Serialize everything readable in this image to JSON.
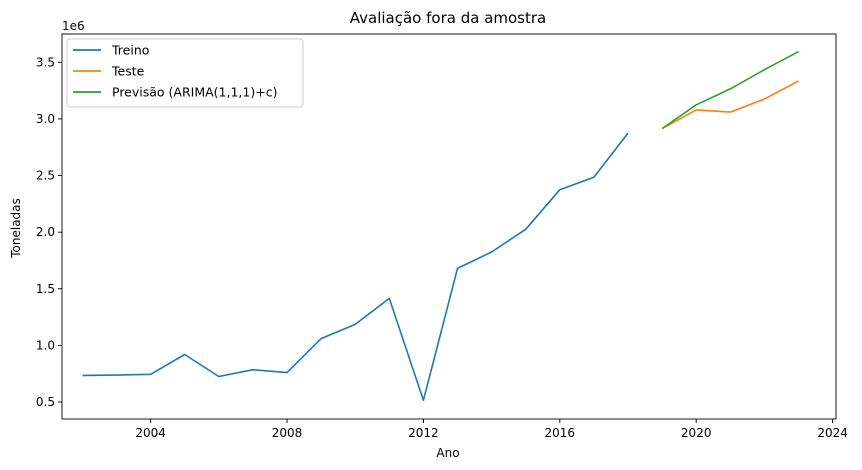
{
  "chart_data": {
    "type": "line",
    "title": "Avaliação fora da amostra",
    "xlabel": "Ano",
    "ylabel": "Toneladas",
    "y_offset_label": "1e6",
    "xlim": [
      2001.4,
      2024.1
    ],
    "ylim": [
      350000,
      3750000
    ],
    "x_ticks": [
      2004,
      2008,
      2012,
      2016,
      2020,
      2024
    ],
    "y_ticks": [
      500000,
      1000000,
      1500000,
      2000000,
      2500000,
      3000000,
      3500000
    ],
    "y_tick_labels": [
      "0.5",
      "1.0",
      "1.5",
      "2.0",
      "2.5",
      "3.0",
      "3.5"
    ],
    "grid": false,
    "legend_position": "top-left",
    "series": [
      {
        "name": "Treino",
        "color": "#1f77b4",
        "x": [
          2002,
          2003,
          2004,
          2005,
          2006,
          2007,
          2008,
          2009,
          2010,
          2011,
          2012,
          2013,
          2014,
          2015,
          2016,
          2017,
          2018
        ],
        "y": [
          735000,
          738000,
          745000,
          920000,
          725000,
          785000,
          760000,
          1060000,
          1185000,
          1415000,
          515000,
          1680000,
          1825000,
          2025000,
          2375000,
          2485000,
          2875000
        ]
      },
      {
        "name": "Teste",
        "color": "#ff7f0e",
        "x": [
          2019,
          2020,
          2021,
          2022,
          2023
        ],
        "y": [
          2915000,
          3080000,
          3060000,
          3175000,
          3335000
        ]
      },
      {
        "name": "Previsão (ARIMA(1,1,1)+c)",
        "color": "#2ca02c",
        "x": [
          2019,
          2020,
          2021,
          2022,
          2023
        ],
        "y": [
          2915000,
          3125000,
          3265000,
          3435000,
          3595000
        ]
      }
    ]
  }
}
